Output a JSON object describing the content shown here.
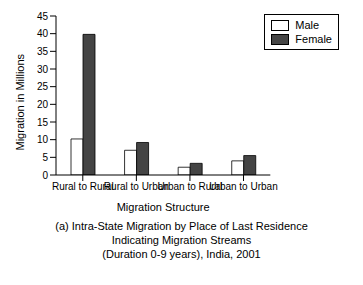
{
  "chart_data": {
    "type": "bar",
    "title": [
      "(a) Intra-State Migration by Place of Last Residence",
      "Indicating Migration Streams",
      "(Duration 0-9 years), India, 2001"
    ],
    "x_label": "Migration Structure",
    "y_label": "Migration in Millions",
    "categories": [
      "Rural to Rural",
      "Rural to Urban",
      "Urban to Rural",
      "Urban to Urban"
    ],
    "series": [
      {
        "name": "Male",
        "color": "#ffffff",
        "values": [
          10.2,
          7,
          2.2,
          4
        ]
      },
      {
        "name": "Female",
        "color": "#444444",
        "values": [
          39.8,
          9.2,
          3.3,
          5.5
        ]
      }
    ],
    "ylim": [
      0,
      45
    ],
    "yticks": [
      0,
      5,
      10,
      15,
      20,
      25,
      30,
      35,
      40,
      45
    ],
    "grid": false,
    "legend": "upper right"
  }
}
